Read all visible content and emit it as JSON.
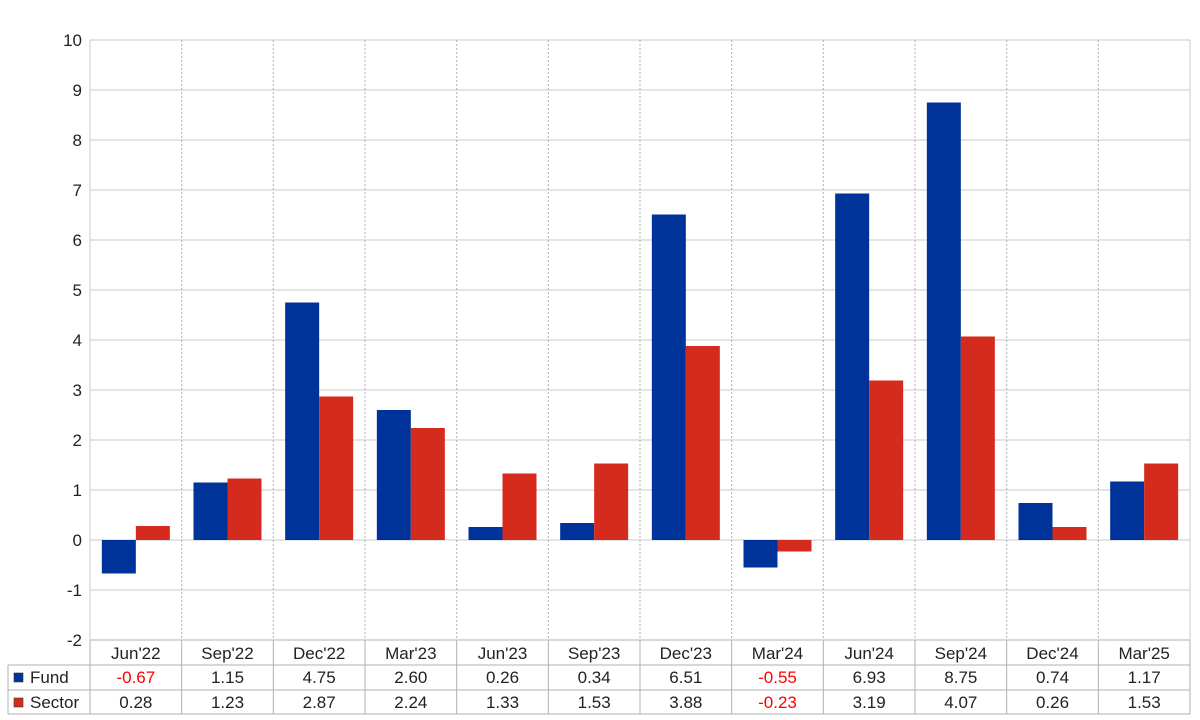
{
  "chart_data": {
    "type": "bar",
    "categories": [
      "Jun'22",
      "Sep'22",
      "Dec'22",
      "Mar'23",
      "Jun'23",
      "Sep'23",
      "Dec'23",
      "Mar'24",
      "Jun'24",
      "Sep'24",
      "Dec'24",
      "Mar'25"
    ],
    "series": [
      {
        "name": "Fund",
        "color": "#003399",
        "values": [
          -0.67,
          1.15,
          4.75,
          2.6,
          0.26,
          0.34,
          6.51,
          -0.55,
          6.93,
          8.75,
          0.74,
          1.17
        ],
        "labels": [
          "-0.67",
          "1.15",
          "4.75",
          "2.60",
          "0.26",
          "0.34",
          "6.51",
          "-0.55",
          "6.93",
          "8.75",
          "0.74",
          "1.17"
        ]
      },
      {
        "name": "Sector",
        "color": "#d52b1e",
        "values": [
          0.28,
          1.23,
          2.87,
          2.24,
          1.33,
          1.53,
          3.88,
          -0.23,
          3.19,
          4.07,
          0.26,
          1.53
        ],
        "labels": [
          "0.28",
          "1.23",
          "2.87",
          "2.24",
          "1.33",
          "1.53",
          "3.88",
          "-0.23",
          "3.19",
          "4.07",
          "0.26",
          "1.53"
        ]
      }
    ],
    "ylim": [
      -2,
      10
    ],
    "yticks": [
      "-2",
      "-1",
      "0",
      "1",
      "2",
      "3",
      "4",
      "5",
      "6",
      "7",
      "8",
      "9",
      "10"
    ],
    "grid": true,
    "legend": "data-table-below",
    "negative_label_color": "#ff0000"
  }
}
